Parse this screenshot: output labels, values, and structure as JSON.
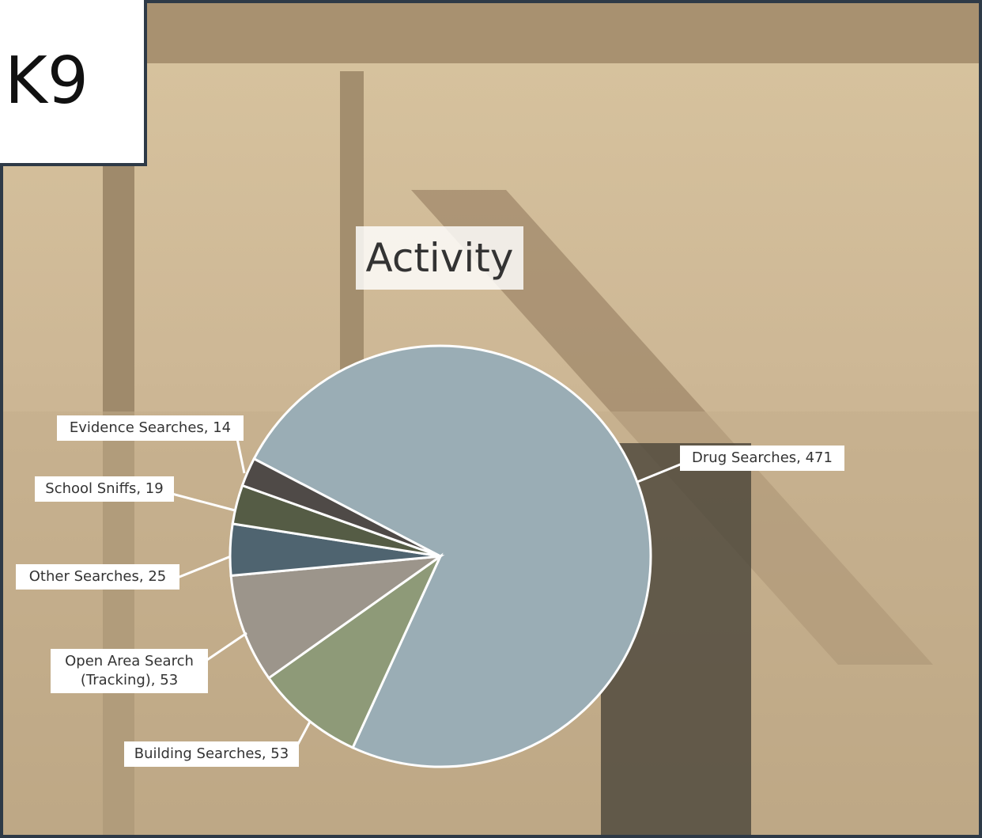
{
  "slide_title": "K9",
  "chart_data": {
    "type": "pie",
    "title": "Activity",
    "values": [
      471,
      53,
      53,
      25,
      19,
      14
    ],
    "value_labels": [
      "Drug Searches, 471",
      "Building Searches, 53",
      "Open Area Search (Tracking), 53",
      "Other Searches, 25",
      "School Sniffs, 19",
      "Evidence Searches, 14"
    ],
    "colors": [
      "#9aadb5",
      "#8e9a78",
      "#9c958b",
      "#4f6470",
      "#555c45",
      "#4f4a47"
    ]
  }
}
